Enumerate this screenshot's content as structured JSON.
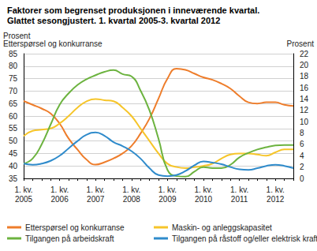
{
  "chart_data": {
    "type": "line",
    "title": "Faktorer som begrenset produksjonen i inneværende kvartal.",
    "subtitle": "Glattet sesongjustert. 1. kvartal 2005-3. kvartal 2012",
    "ylabel": "Prosent\nEtterspørsel og konkurranse",
    "y2label": "Prosent",
    "categories": [
      "1. kv.\n2005",
      null,
      null,
      null,
      "1. kv.\n2006",
      null,
      null,
      null,
      "1. kv.\n2007",
      null,
      null,
      null,
      "1. kv.\n2008",
      null,
      null,
      null,
      "1. kv.\n2009",
      null,
      null,
      null,
      "1. kv.\n2010",
      null,
      null,
      null,
      "1. kv.\n2011",
      null,
      null,
      null,
      "1. kv.\n2012",
      null,
      null
    ],
    "series": [
      {
        "name": "Etterspørsel og konkurranse",
        "color": "#ee7d2b",
        "values": [
          66,
          64.5,
          63,
          61,
          57,
          51,
          46.5,
          42.5,
          40.5,
          41.5,
          43,
          45,
          48,
          53,
          59,
          67,
          75,
          79,
          78.5,
          77,
          75.5,
          74.5,
          73,
          71,
          68,
          65.5,
          65,
          65.5,
          65.5,
          64.5,
          64
        ]
      },
      {
        "name": "Maskin- og anleggskapasitet",
        "color": "#f6c52a",
        "axis": "y2",
        "values": [
          7.5,
          8.4,
          8.6,
          8.8,
          9.7,
          11,
          12.5,
          13.6,
          14,
          13.8,
          13.6,
          12.5,
          11,
          8.8,
          6.6,
          4.4,
          2.6,
          2,
          1.8,
          2,
          2.2,
          2.6,
          3.5,
          4.2,
          4.4,
          4.4,
          4.2,
          4,
          4.6,
          5.1,
          5.1
        ]
      },
      {
        "name": "Tilgangen på arbeidskraft",
        "color": "#6cb33f",
        "axis": "y2",
        "values": [
          2.6,
          3.5,
          6,
          9.5,
          13,
          15,
          16.5,
          17.5,
          18.2,
          18.8,
          19.1,
          18.4,
          18,
          15.5,
          12,
          7,
          1.5,
          0.4,
          0.3,
          1.2,
          2,
          1.8,
          1.8,
          2.4,
          3.7,
          4.5,
          5.1,
          5.5,
          5.8,
          5.9,
          5.9
        ]
      },
      {
        "name": "Tilgangen på råstoff og/eller elektrisk kraft",
        "color": "#2f8bcb",
        "axis": "y2",
        "values": [
          2.6,
          2.4,
          2.6,
          3.1,
          4,
          5.3,
          6.6,
          7.7,
          8.1,
          7.5,
          6.4,
          5.7,
          4.8,
          3.5,
          1.8,
          0.6,
          0.4,
          0.6,
          1.3,
          2.3,
          3,
          2.8,
          2.5,
          2,
          1.6,
          1.5,
          1.8,
          2.2,
          2.4,
          2.2,
          1.8
        ]
      }
    ],
    "ylim": [
      35,
      85
    ],
    "yticks": [
      35,
      40,
      45,
      50,
      55,
      60,
      65,
      70,
      75,
      80,
      85
    ],
    "y2lim": [
      0,
      22
    ],
    "y2ticks": [
      0,
      2,
      4,
      6,
      8,
      10,
      12,
      14,
      16,
      18,
      20,
      22
    ],
    "grid": true,
    "legend": "bottom"
  }
}
